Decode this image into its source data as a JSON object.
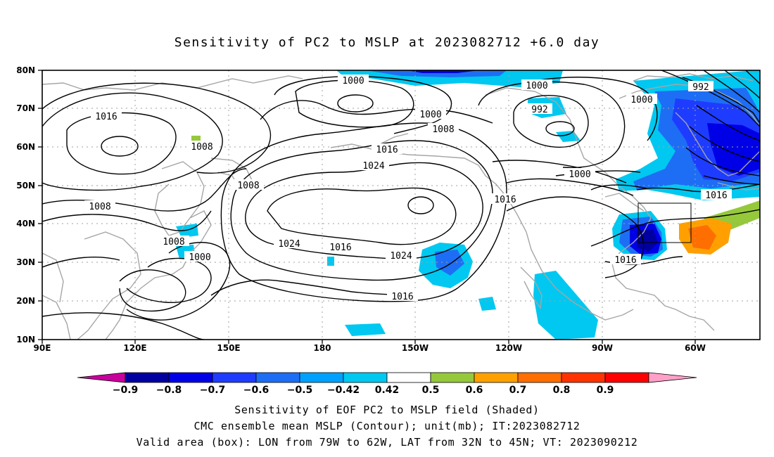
{
  "title": "Sensitivity of PC2 to MSLP at 2023082712 +6.0 day",
  "map": {
    "lat_ticks": [
      "80N",
      "70N",
      "60N",
      "50N",
      "40N",
      "30N",
      "20N",
      "10N"
    ],
    "lon_ticks": [
      "90E",
      "120E",
      "150E",
      "180",
      "150W",
      "120W",
      "90W",
      "60W"
    ],
    "grid": "dotted",
    "valid_box": {
      "lon": [
        "79W",
        "62W"
      ],
      "lat": [
        "32N",
        "45N"
      ]
    }
  },
  "contour_labels": [
    {
      "text": "1000"
    },
    {
      "text": "1000"
    },
    {
      "text": "992"
    },
    {
      "text": "992"
    },
    {
      "text": "1000"
    },
    {
      "text": "1000"
    },
    {
      "text": "1016"
    },
    {
      "text": "1008"
    },
    {
      "text": "1008"
    },
    {
      "text": "1016"
    },
    {
      "text": "1024"
    },
    {
      "text": "1000"
    },
    {
      "text": "1008"
    },
    {
      "text": "1008"
    },
    {
      "text": "1016"
    },
    {
      "text": "1016"
    },
    {
      "text": "1024"
    },
    {
      "text": "1016"
    },
    {
      "text": "1024"
    },
    {
      "text": "1008"
    },
    {
      "text": "1000"
    },
    {
      "text": "1016"
    },
    {
      "text": "1016"
    }
  ],
  "colorbar": {
    "labels": [
      "−0.9",
      "−0.8",
      "−0.7",
      "−0.6",
      "−0.5",
      "−0.42",
      "0.42",
      "0.5",
      "0.6",
      "0.7",
      "0.8",
      "0.9"
    ],
    "colors": [
      "#c8009c",
      "#0000a0",
      "#0000e6",
      "#1e3cff",
      "#1e6ef5",
      "#00a0ff",
      "#00c8f0",
      "#ffffff",
      "#96c83c",
      "#ffa000",
      "#ff6e00",
      "#ff3200",
      "#ff0000",
      "#ffa0c8"
    ]
  },
  "captions": [
    "Sensitivity of EOF PC2 to MSLP field (Shaded)",
    "CMC ensemble mean MSLP (Contour); unit(mb); IT:2023082712",
    "Valid area (box): LON from 79W to 62W, LAT from 32N to 45N; VT: 2023090212"
  ]
}
